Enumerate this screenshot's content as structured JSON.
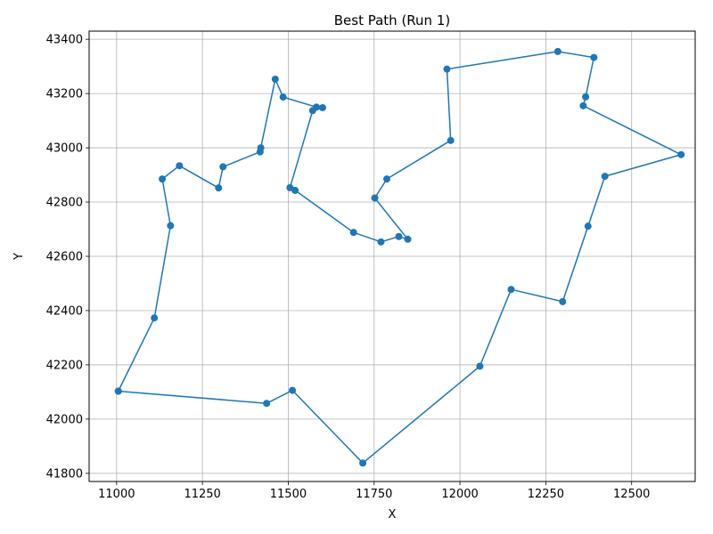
{
  "chart_data": {
    "type": "line",
    "title": "Best Path (Run 1)",
    "xlabel": "X",
    "ylabel": "Y",
    "xlim": [
      10920,
      12685
    ],
    "ylim": [
      41770,
      43430
    ],
    "xticks": [
      11000,
      11250,
      11500,
      11750,
      12000,
      12250,
      12500
    ],
    "yticks": [
      41800,
      42000,
      42200,
      42400,
      42600,
      42800,
      43000,
      43200,
      43400
    ],
    "grid": true,
    "series": [
      {
        "color": "#1f77b4",
        "marker": "circle",
        "points": [
          [
            11005,
            42103
          ],
          [
            11110,
            42373
          ],
          [
            11157,
            42713
          ],
          [
            11133,
            42885
          ],
          [
            11183,
            42934
          ],
          [
            11297,
            42852
          ],
          [
            11310,
            42930
          ],
          [
            11418,
            42985
          ],
          [
            11420,
            43000
          ],
          [
            11462,
            43253
          ],
          [
            11485,
            43187
          ],
          [
            11582,
            43150
          ],
          [
            11600,
            43148
          ],
          [
            11571,
            43137
          ],
          [
            11505,
            42853
          ],
          [
            11520,
            42843
          ],
          [
            11690,
            42688
          ],
          [
            11770,
            42653
          ],
          [
            11822,
            42673
          ],
          [
            11848,
            42663
          ],
          [
            11752,
            42815
          ],
          [
            11787,
            42885
          ],
          [
            11973,
            43027
          ],
          [
            11962,
            43290
          ],
          [
            12285,
            43355
          ],
          [
            12390,
            43333
          ],
          [
            12366,
            43188
          ],
          [
            12359,
            43155
          ],
          [
            12644,
            42975
          ],
          [
            12422,
            42895
          ],
          [
            12373,
            42711
          ],
          [
            12299,
            42433
          ],
          [
            12149,
            42478
          ],
          [
            12058,
            42195
          ],
          [
            11717,
            41838
          ],
          [
            11512,
            42106
          ],
          [
            11437,
            42058
          ],
          [
            11005,
            42103
          ]
        ]
      }
    ]
  }
}
